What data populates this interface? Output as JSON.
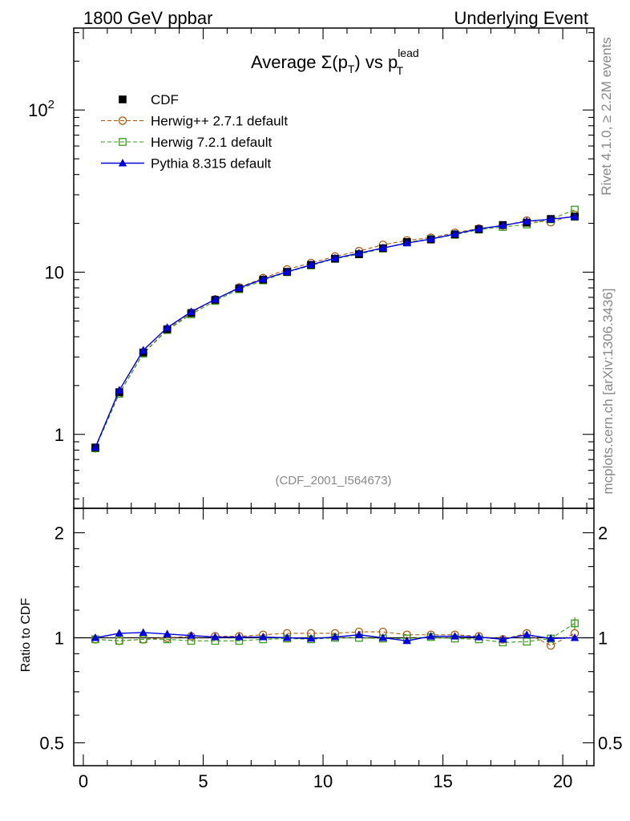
{
  "header": {
    "left": "1800 GeV ppbar",
    "right": "Underlying Event"
  },
  "side_labels": {
    "top": "Rivet 4.1.0, ≥ 2.2M events",
    "bottom": "mcplots.cern.ch [arXiv:1306.3436]"
  },
  "analysis_id": "(CDF_2001_I564673)",
  "title": {
    "prefix": "Average ",
    "sigma": "Σ(p",
    "sub1": "T",
    "mid": ") vs p",
    "sup": "lead",
    "sub2": "T"
  },
  "colors": {
    "cdf": "#000000",
    "herwigpp": "#a85a12",
    "herwig7": "#3a9a1a",
    "pythia": "#0000dd"
  },
  "chart_data": [
    {
      "type": "line",
      "yscale": "log",
      "ylim": [
        0.35,
        320
      ],
      "xlim": [
        -0.4,
        21.3
      ],
      "y_ticks": [
        {
          "value": 1,
          "label": "1"
        },
        {
          "value": 10,
          "label": "10"
        },
        {
          "value": 100,
          "label": "10",
          "sup": "2"
        }
      ],
      "legend_position": "top-left",
      "x": [
        0.5,
        1.5,
        2.5,
        3.5,
        4.5,
        5.5,
        6.5,
        7.5,
        8.5,
        9.5,
        10.5,
        11.5,
        12.5,
        13.5,
        14.5,
        15.5,
        16.5,
        17.5,
        18.5,
        19.5,
        20.5
      ],
      "series": [
        {
          "name": "CDF",
          "key": "cdf",
          "marker": "square-filled",
          "line": "none",
          "values": [
            0.83,
            1.82,
            3.2,
            4.45,
            5.6,
            6.75,
            7.95,
            9.0,
            10.05,
            11.1,
            12.1,
            12.9,
            14.05,
            15.35,
            15.9,
            17.1,
            18.4,
            19.55,
            20.2,
            21.3,
            22.0
          ]
        },
        {
          "name": "Herwig++ 2.7.1 default",
          "key": "herwigpp",
          "marker": "circle-open",
          "line": "dashed",
          "values": [
            0.82,
            1.79,
            3.16,
            4.45,
            5.62,
            6.8,
            8.05,
            9.2,
            10.4,
            11.4,
            12.5,
            13.5,
            14.75,
            15.7,
            16.3,
            17.5,
            18.6,
            19.4,
            20.8,
            20.3,
            22.6
          ]
        },
        {
          "name": "Herwig 7.2.1 default",
          "key": "herwig7",
          "marker": "square-open",
          "line": "dashed",
          "values": [
            0.82,
            1.78,
            3.15,
            4.4,
            5.5,
            6.65,
            7.85,
            8.9,
            10.0,
            11.0,
            12.1,
            12.9,
            14.0,
            15.3,
            16.0,
            17.0,
            18.3,
            19.0,
            19.7,
            21.2,
            24.3
          ]
        },
        {
          "name": "Pythia 8.315 default",
          "key": "pythia",
          "marker": "triangle-filled",
          "line": "solid",
          "values": [
            0.83,
            1.87,
            3.3,
            4.55,
            5.7,
            6.8,
            8.0,
            9.05,
            10.05,
            11.1,
            12.2,
            13.1,
            14.1,
            15.1,
            16.0,
            17.2,
            18.5,
            19.4,
            20.6,
            21.2,
            22.0
          ]
        }
      ]
    },
    {
      "type": "line",
      "yscale": "log",
      "ylabel": "Ratio to CDF",
      "ylim": [
        0.43,
        2.35
      ],
      "xlim": [
        -0.4,
        21.3
      ],
      "y_ticks": [
        {
          "value": 0.5,
          "label": "0.5"
        },
        {
          "value": 1,
          "label": "1"
        },
        {
          "value": 2,
          "label": "2"
        }
      ],
      "x_ticks": [
        {
          "value": 0,
          "label": "0"
        },
        {
          "value": 5,
          "label": "5"
        },
        {
          "value": 10,
          "label": "10"
        },
        {
          "value": 15,
          "label": "15"
        },
        {
          "value": 20,
          "label": "20"
        }
      ],
      "reference_line": 1,
      "x": [
        0.5,
        1.5,
        2.5,
        3.5,
        4.5,
        5.5,
        6.5,
        7.5,
        8.5,
        9.5,
        10.5,
        11.5,
        12.5,
        13.5,
        14.5,
        15.5,
        16.5,
        17.5,
        18.5,
        19.5,
        20.5
      ],
      "series": [
        {
          "key": "herwigpp",
          "marker": "circle-open",
          "line": "dashed",
          "values": [
            0.99,
            0.98,
            0.99,
            1.0,
            1.01,
            1.01,
            1.01,
            1.02,
            1.03,
            1.03,
            1.03,
            1.04,
            1.04,
            1.02,
            1.02,
            1.02,
            1.01,
            0.99,
            1.03,
            0.95,
            1.03
          ]
        },
        {
          "key": "herwig7",
          "marker": "square-open",
          "line": "dashed",
          "values": [
            0.99,
            0.98,
            0.99,
            0.99,
            0.98,
            0.98,
            0.98,
            0.99,
            0.995,
            0.99,
            1.0,
            1.0,
            0.995,
            0.995,
            1.005,
            0.995,
            0.99,
            0.97,
            0.975,
            0.995,
            1.1
          ]
        },
        {
          "key": "pythia",
          "marker": "triangle-filled",
          "line": "solid",
          "values": [
            1.0,
            1.03,
            1.035,
            1.025,
            1.015,
            1.005,
            1.005,
            1.005,
            1.0,
            0.995,
            1.005,
            1.02,
            1.0,
            0.98,
            1.01,
            1.01,
            1.005,
            0.99,
            1.02,
            0.995,
            1.0
          ]
        }
      ]
    }
  ]
}
